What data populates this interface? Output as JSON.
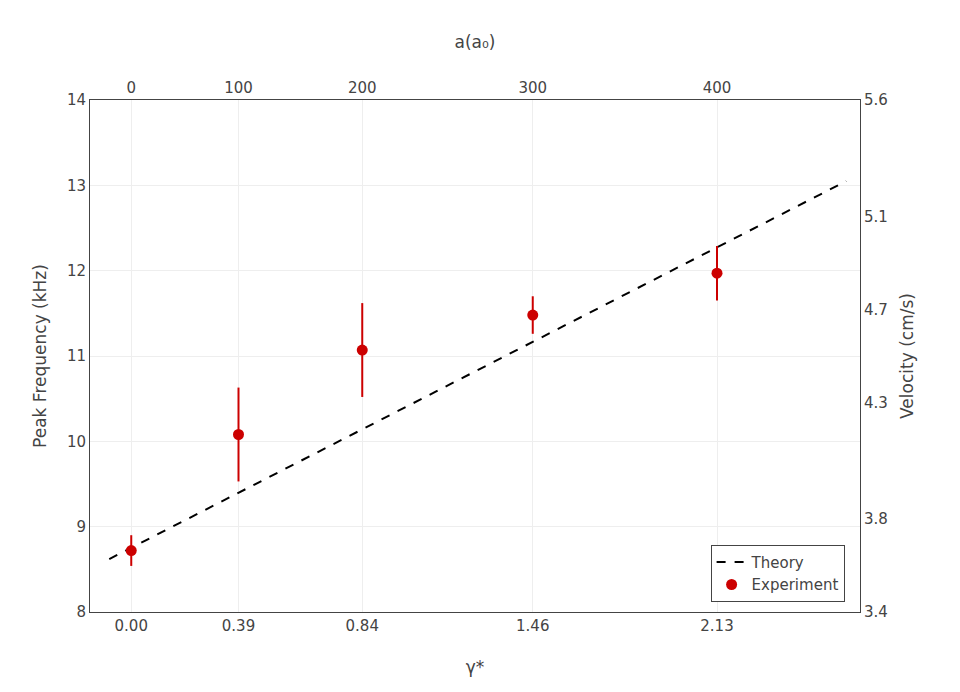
{
  "chart_data": {
    "type": "scatter",
    "xlabel": "γ*",
    "ylabel": "Peak Frequency (kHz)",
    "y2label": "Velocity (cm/s)",
    "x2label": "a(a₀)",
    "series": [
      {
        "name": "Theory",
        "type": "line",
        "line_style": "dashed",
        "color": "#000000",
        "x": [
          -0.08,
          2.6
        ],
        "values": [
          8.62,
          13.05
        ]
      },
      {
        "name": "Experiment",
        "type": "scatter",
        "marker": "circle",
        "color": "#cc0000",
        "x": [
          0.0,
          0.39,
          0.84,
          1.46,
          2.13
        ],
        "values": [
          8.72,
          10.08,
          11.07,
          11.48,
          11.97
        ],
        "error": [
          0.18,
          0.55,
          0.55,
          0.22,
          0.32
        ]
      }
    ],
    "xlim": [
      -0.15,
      2.65
    ],
    "xticks": [
      {
        "value": 0.0,
        "label": "0.00"
      },
      0.39,
      0.84,
      1.46,
      2.13
    ],
    "x2lim": [
      -0.15,
      2.65
    ],
    "x2ticks": [
      {
        "value": 0.0,
        "label": "0"
      },
      {
        "value": 0.39,
        "label": "100"
      },
      {
        "value": 0.84,
        "label": "200"
      },
      {
        "value": 1.46,
        "label": "300"
      },
      {
        "value": 2.13,
        "label": "400"
      }
    ],
    "ylim": [
      8.0,
      14.0
    ],
    "yticks": [
      8,
      9,
      10,
      11,
      12,
      13,
      14
    ],
    "y2lim": [
      3.4,
      5.6
    ],
    "y2ticks": [
      3.4,
      3.8,
      4.3,
      4.7,
      5.1,
      5.6
    ],
    "grid": true,
    "legend": "lower right"
  }
}
